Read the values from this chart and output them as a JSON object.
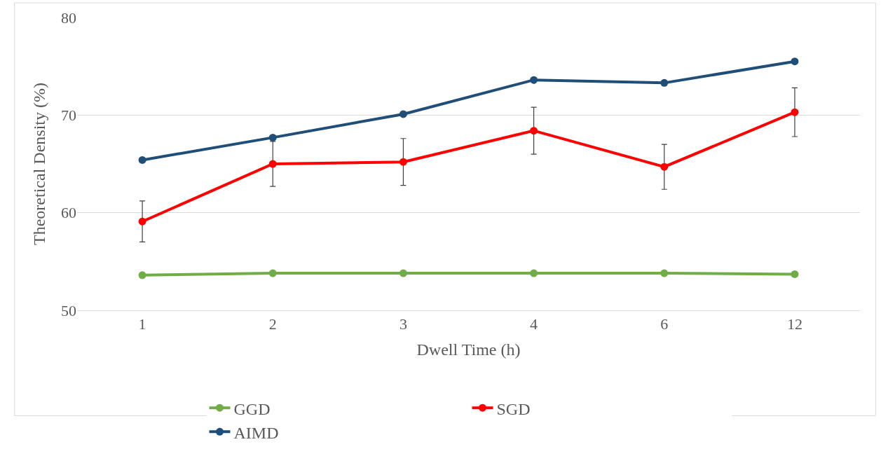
{
  "chart_data": {
    "type": "line",
    "xlabel": "Dwell Time (h)",
    "ylabel": "Theoretical Density (%)",
    "categories": [
      "1",
      "2",
      "3",
      "4",
      "6",
      "12"
    ],
    "series": [
      {
        "name": "GGD",
        "color": "#70ad47",
        "values": [
          53.6,
          53.8,
          53.8,
          53.8,
          53.8,
          53.7
        ]
      },
      {
        "name": "SGD",
        "color": "#ff0000",
        "values": [
          59.1,
          65.0,
          65.2,
          68.4,
          64.7,
          70.3
        ],
        "errors": [
          2.1,
          2.3,
          2.4,
          2.4,
          2.3,
          2.5
        ]
      },
      {
        "name": "AIMD",
        "color": "#1f4e79",
        "values": [
          65.4,
          67.7,
          70.1,
          73.6,
          73.3,
          75.5
        ]
      }
    ],
    "ylim": [
      50,
      80
    ],
    "yticks": [
      50,
      60,
      70,
      80
    ],
    "grid": "y",
    "legend": "bottom",
    "marker": "circle",
    "line_style": "solid"
  }
}
